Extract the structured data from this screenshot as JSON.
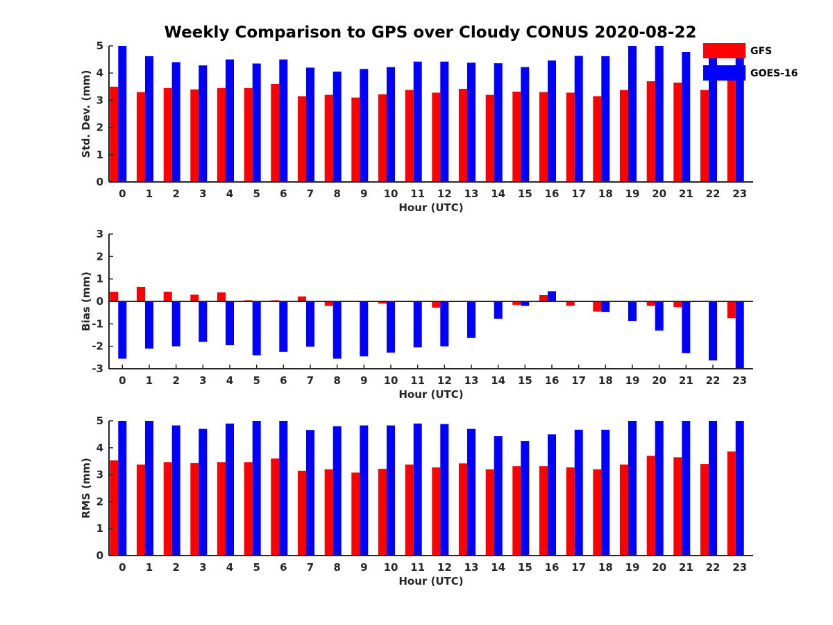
{
  "title": "Weekly Comparison to GPS over Cloudy CONUS 2020-08-22",
  "colors": {
    "GFS": "#ff0000",
    "GOES-16": "#0000ff",
    "axis": "#262626"
  },
  "legend": {
    "placement": "top-right",
    "items": [
      {
        "label": "GFS"
      },
      {
        "label": "GOES-16"
      }
    ]
  },
  "chart_data": [
    {
      "type": "bar",
      "xlabel": "Hour (UTC)",
      "ylabel": "Std. Dev. (mm)",
      "ylim": [
        0,
        5
      ],
      "yticks": [
        0,
        1,
        2,
        3,
        4,
        5
      ],
      "categories": [
        "0",
        "1",
        "2",
        "3",
        "4",
        "5",
        "6",
        "7",
        "8",
        "9",
        "10",
        "11",
        "12",
        "13",
        "14",
        "15",
        "16",
        "17",
        "18",
        "19",
        "20",
        "21",
        "22",
        "23"
      ],
      "series": [
        {
          "name": "GFS",
          "values": [
            3.5,
            3.3,
            3.45,
            3.4,
            3.45,
            3.45,
            3.6,
            3.15,
            3.2,
            3.1,
            3.22,
            3.38,
            3.28,
            3.42,
            3.2,
            3.32,
            3.3,
            3.28,
            3.15,
            3.38,
            3.7,
            3.65,
            3.38,
            3.8
          ]
        },
        {
          "name": "GOES-16",
          "values": [
            5.0,
            4.62,
            4.4,
            4.28,
            4.5,
            4.35,
            4.5,
            4.2,
            4.05,
            4.15,
            4.22,
            4.42,
            4.42,
            4.38,
            4.36,
            4.22,
            4.46,
            4.63,
            4.62,
            5.0,
            5.0,
            4.77,
            4.82,
            4.6
          ]
        }
      ]
    },
    {
      "type": "bar",
      "xlabel": "Hour (UTC)",
      "ylabel": "Bias (mm)",
      "ylim": [
        -3,
        3
      ],
      "yticks": [
        -3,
        -2,
        -1,
        0,
        1,
        2,
        3
      ],
      "categories": [
        "0",
        "1",
        "2",
        "3",
        "4",
        "5",
        "6",
        "7",
        "8",
        "9",
        "10",
        "11",
        "12",
        "13",
        "14",
        "15",
        "16",
        "17",
        "18",
        "19",
        "20",
        "21",
        "22",
        "23"
      ],
      "series": [
        {
          "name": "GFS",
          "values": [
            0.43,
            0.65,
            0.43,
            0.3,
            0.4,
            0.05,
            0.05,
            0.22,
            -0.2,
            0,
            -0.1,
            -0.03,
            -0.28,
            -0.03,
            0,
            -0.15,
            0.28,
            -0.2,
            -0.45,
            0,
            -0.2,
            -0.25,
            0,
            -0.75
          ]
        },
        {
          "name": "GOES-16",
          "values": [
            -2.55,
            -2.1,
            -2.0,
            -1.8,
            -1.95,
            -2.4,
            -2.25,
            -2.02,
            -2.55,
            -2.45,
            -2.28,
            -2.05,
            -2.0,
            -1.63,
            -0.77,
            -0.2,
            0.45,
            0,
            -0.47,
            -0.87,
            -1.3,
            -2.3,
            -2.63,
            -3.0
          ]
        }
      ]
    },
    {
      "type": "bar",
      "xlabel": "Hour (UTC)",
      "ylabel": "RMS (mm)",
      "ylim": [
        0,
        5
      ],
      "yticks": [
        0,
        1,
        2,
        3,
        4,
        5
      ],
      "categories": [
        "0",
        "1",
        "2",
        "3",
        "4",
        "5",
        "6",
        "7",
        "8",
        "9",
        "10",
        "11",
        "12",
        "13",
        "14",
        "15",
        "16",
        "17",
        "18",
        "19",
        "20",
        "21",
        "22",
        "23"
      ],
      "series": [
        {
          "name": "GFS",
          "values": [
            3.53,
            3.38,
            3.47,
            3.43,
            3.47,
            3.47,
            3.6,
            3.15,
            3.2,
            3.08,
            3.22,
            3.38,
            3.27,
            3.42,
            3.2,
            3.32,
            3.32,
            3.27,
            3.2,
            3.38,
            3.7,
            3.65,
            3.4,
            3.86
          ]
        },
        {
          "name": "GOES-16",
          "values": [
            5.0,
            5.0,
            4.83,
            4.7,
            4.9,
            5.0,
            5.0,
            4.66,
            4.8,
            4.83,
            4.83,
            4.9,
            4.88,
            4.7,
            4.43,
            4.25,
            4.5,
            4.67,
            4.67,
            5.0,
            5.0,
            5.0,
            5.0,
            5.0
          ]
        }
      ]
    }
  ]
}
